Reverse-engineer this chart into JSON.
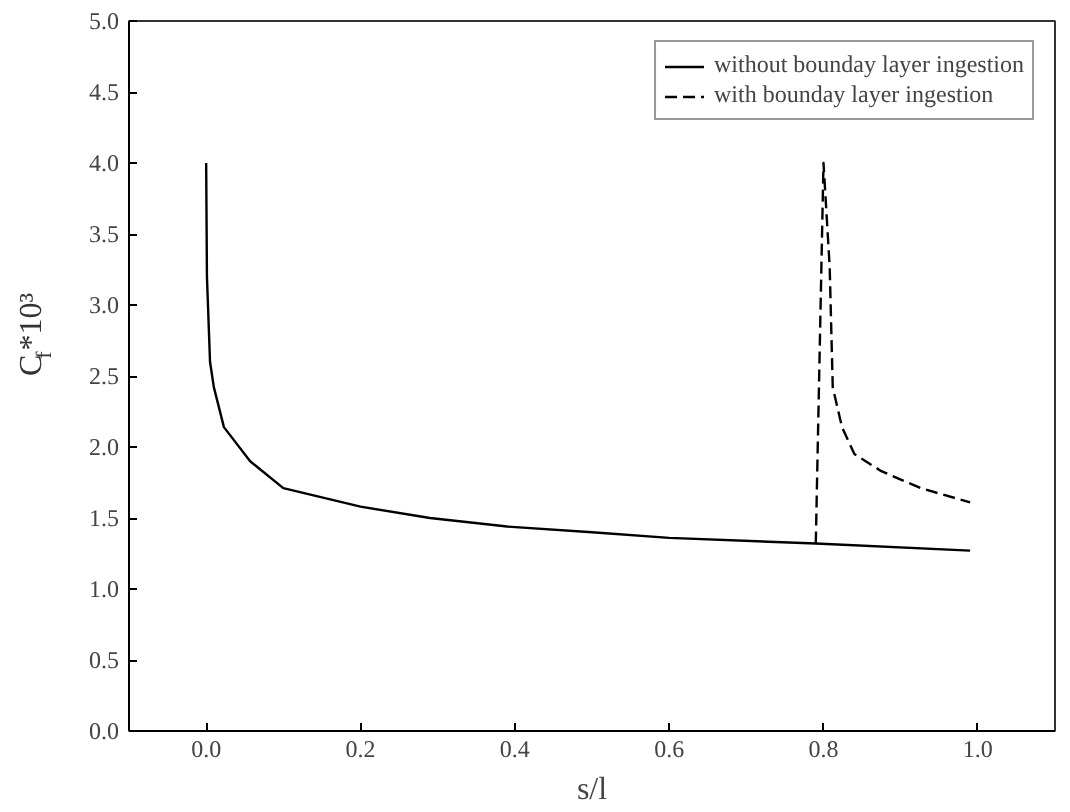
{
  "chart_data": {
    "type": "line",
    "xlabel": "s/l",
    "ylabel": "C$_{f}$*10³",
    "xlim": [
      -0.1,
      1.1
    ],
    "ylim": [
      0,
      5
    ],
    "xticks": [
      {
        "value": 0,
        "label": "0.0"
      },
      0.2,
      0.4,
      0.6,
      0.8,
      {
        "value": 1,
        "label": "1.0"
      }
    ],
    "yticks": [
      {
        "value": 0,
        "label": "0.0"
      },
      0.5,
      {
        "value": 1,
        "label": "1.0"
      },
      1.5,
      {
        "value": 2,
        "label": "2.0"
      },
      2.5,
      {
        "value": 3,
        "label": "3.0"
      },
      3.5,
      {
        "value": 4,
        "label": "4.0"
      },
      4.5,
      {
        "value": 5,
        "label": "5.0"
      }
    ],
    "grid": false,
    "legend": "top right",
    "series": [
      {
        "name": "without bounday layer ingestion",
        "color": "#000000",
        "line_style": "solid",
        "x": [
          0,
          0.001,
          0.005,
          0.01,
          0.023,
          0.057,
          0.1,
          0.2,
          0.29,
          0.39,
          0.5,
          0.6,
          0.79,
          0.99
        ],
        "values": [
          4.0,
          3.2,
          2.6,
          2.42,
          2.14,
          1.9,
          1.71,
          1.58,
          1.5,
          1.44,
          1.4,
          1.36,
          1.32,
          1.27
        ]
      },
      {
        "name": "with bounday layer ingestion",
        "color": "#000000",
        "line_style": "dashed",
        "x": [
          0.79,
          0.8,
          0.808,
          0.812,
          0.824,
          0.84,
          0.875,
          0.926,
          0.99
        ],
        "values": [
          1.32,
          4.0,
          3.27,
          2.42,
          2.14,
          1.95,
          1.83,
          1.71,
          1.61
        ]
      }
    ]
  }
}
